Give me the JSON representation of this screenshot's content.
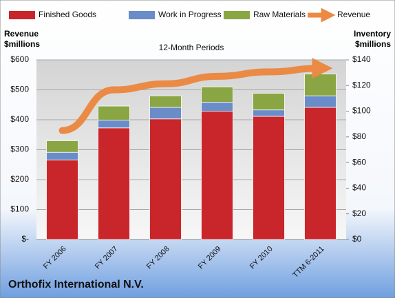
{
  "chart_data": {
    "type": "bar",
    "stacked": true,
    "title": "12-Month Periods",
    "company": "Orthofix International N.V.",
    "y_label": "Revenue $millions",
    "y2_label": "Inventory $millions",
    "categories": [
      "FY 2006",
      "FY 2007",
      "FY 2008",
      "FY 2009",
      "FY 2010",
      "TTM 6-2011"
    ],
    "series": [
      {
        "name": "Finished Goods",
        "color": "#c8262b",
        "axis": "y2",
        "values": [
          62,
          87,
          94,
          100,
          96,
          103
        ]
      },
      {
        "name": "Work in Progress",
        "color": "#6a8cc8",
        "axis": "y2",
        "values": [
          6,
          6,
          9,
          7,
          5,
          9
        ]
      },
      {
        "name": "Raw Materials",
        "color": "#8aa544",
        "axis": "y2",
        "values": [
          9,
          11,
          9,
          12,
          13,
          17
        ]
      },
      {
        "name": "Revenue",
        "color": "#eb8a45",
        "type": "line",
        "axis": "y",
        "values": [
          364,
          500,
          520,
          545,
          560,
          572
        ]
      }
    ],
    "ylim": [
      0,
      600
    ],
    "yticks": [
      {
        "value": 0,
        "label": "$-"
      },
      {
        "value": 100,
        "label": "$100"
      },
      {
        "value": 200,
        "label": "$200"
      },
      {
        "value": 300,
        "label": "$300"
      },
      {
        "value": 400,
        "label": "$400"
      },
      {
        "value": 500,
        "label": "$500"
      },
      {
        "value": 600,
        "label": "$600"
      }
    ],
    "y2lim": [
      0,
      140
    ],
    "y2ticks": [
      {
        "value": 0,
        "label": "$0"
      },
      {
        "value": 20,
        "label": "$20"
      },
      {
        "value": 40,
        "label": "$40"
      },
      {
        "value": 60,
        "label": "$60"
      },
      {
        "value": 80,
        "label": "$80"
      },
      {
        "value": 100,
        "label": "$100"
      },
      {
        "value": 120,
        "label": "$120"
      },
      {
        "value": 140,
        "label": "$140"
      }
    ],
    "grid": true
  }
}
